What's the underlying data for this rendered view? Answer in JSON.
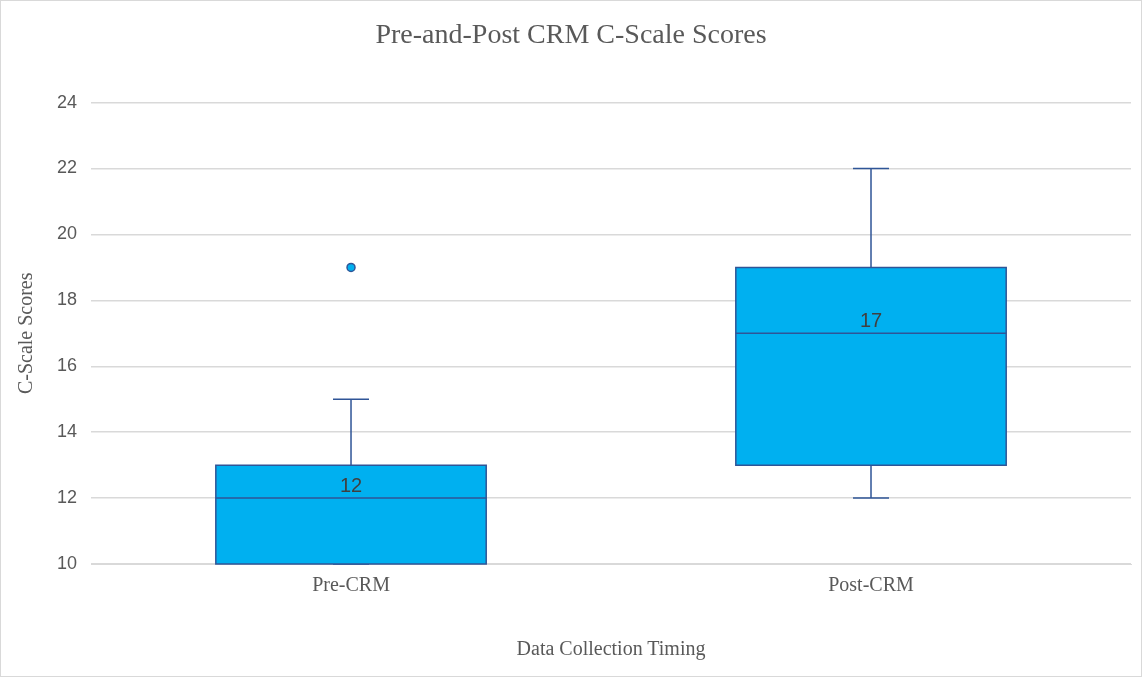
{
  "chart_data": {
    "type": "box",
    "title": "Pre-and-Post CRM C-Scale Scores",
    "xlabel": "Data Collection Timing",
    "ylabel": "C-Scale Scores",
    "categories": [
      "Pre-CRM",
      "Post-CRM"
    ],
    "series": [
      {
        "color": "#00b0f0",
        "boxes": [
          {
            "low": 10,
            "q1": 10,
            "median": 12,
            "q3": 13,
            "high": 15,
            "outliers": [
              19
            ]
          },
          {
            "low": 12,
            "q1": 13,
            "median": 17,
            "q3": 19,
            "high": 22
          }
        ]
      }
    ],
    "ylim": [
      10,
      24
    ],
    "yticks": [
      10,
      12,
      14,
      16,
      18,
      20,
      22,
      24
    ],
    "grid": "y",
    "legend": false,
    "annotations": [
      {
        "text": "12",
        "x": "Pre-CRM",
        "y": 12
      },
      {
        "text": "17",
        "x": "Post-CRM",
        "y": 17
      }
    ]
  }
}
